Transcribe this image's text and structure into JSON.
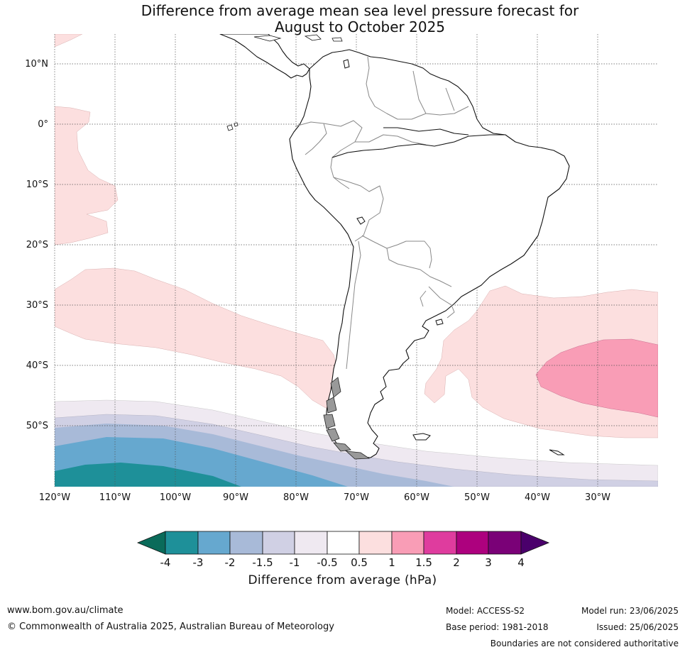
{
  "title_line1": "Difference from average mean sea level pressure forecast for",
  "title_line2": "August to October 2025",
  "lat_labels": [
    "10°N",
    "0°",
    "10°S",
    "20°S",
    "30°S",
    "40°S",
    "50°S"
  ],
  "lon_labels": [
    "120°W",
    "110°W",
    "100°W",
    "90°W",
    "80°W",
    "70°W",
    "60°W",
    "50°W",
    "40°W",
    "30°W"
  ],
  "legend": {
    "title": "Difference from average (hPa)",
    "tick_labels": [
      "-4",
      "-3",
      "-2",
      "-1.5",
      "-1",
      "-0.5",
      "0.5",
      "1",
      "1.5",
      "2",
      "3",
      "4"
    ],
    "colors": {
      "below_-4": "#0a6b5a",
      "-4_to_-3": "#1e9099",
      "-3_to_-2": "#66a8cf",
      "-2_to_-1.5": "#a8bad8",
      "-1.5_to_-1": "#d0d0e4",
      "-1_to_-0.5": "#efe9f1",
      "-0.5_to_0.5": "#ffffff",
      "0.5_to_1": "#fcdfdf",
      "1_to_1.5": "#f99db6",
      "1.5_to_2": "#df3c9e",
      "2_to_3": "#ad017e",
      "3_to_4": "#7a0177",
      "above_4": "#4a006b"
    }
  },
  "footer": {
    "website": "www.bom.gov.au/climate",
    "copyright": "© Commonwealth of Australia 2025, Australian Bureau of Meteorology",
    "model": "Model: ACCESS-S2",
    "base_period": "Base period: 1981-2018",
    "model_run": "Model run: 23/06/2025",
    "issued": "Issued: 25/06/2025",
    "disclaimer": "Boundaries are not considered authoritative"
  }
}
